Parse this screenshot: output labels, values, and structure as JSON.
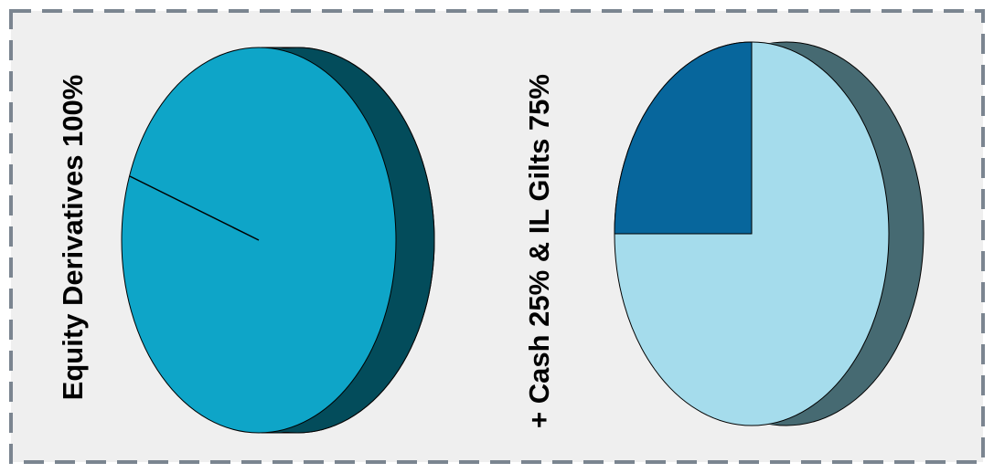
{
  "colors": {
    "background": "#efefef",
    "border": "#7b8590",
    "equity_face": "#0ea5c8",
    "equity_side": "#034c5b",
    "il_gilts_face": "#a5dcec",
    "cash_face": "#07669c",
    "right_side": "#466a72"
  },
  "chart_data": [
    {
      "type": "pie",
      "label": "Equity Derivatives 100%",
      "slices": [
        {
          "name": "Equity Derivatives",
          "value": 100
        }
      ]
    },
    {
      "type": "pie",
      "label": "+ Cash 25% & IL Gilts 75%",
      "slices": [
        {
          "name": "Cash",
          "value": 25
        },
        {
          "name": "IL Gilts",
          "value": 75
        }
      ]
    }
  ]
}
